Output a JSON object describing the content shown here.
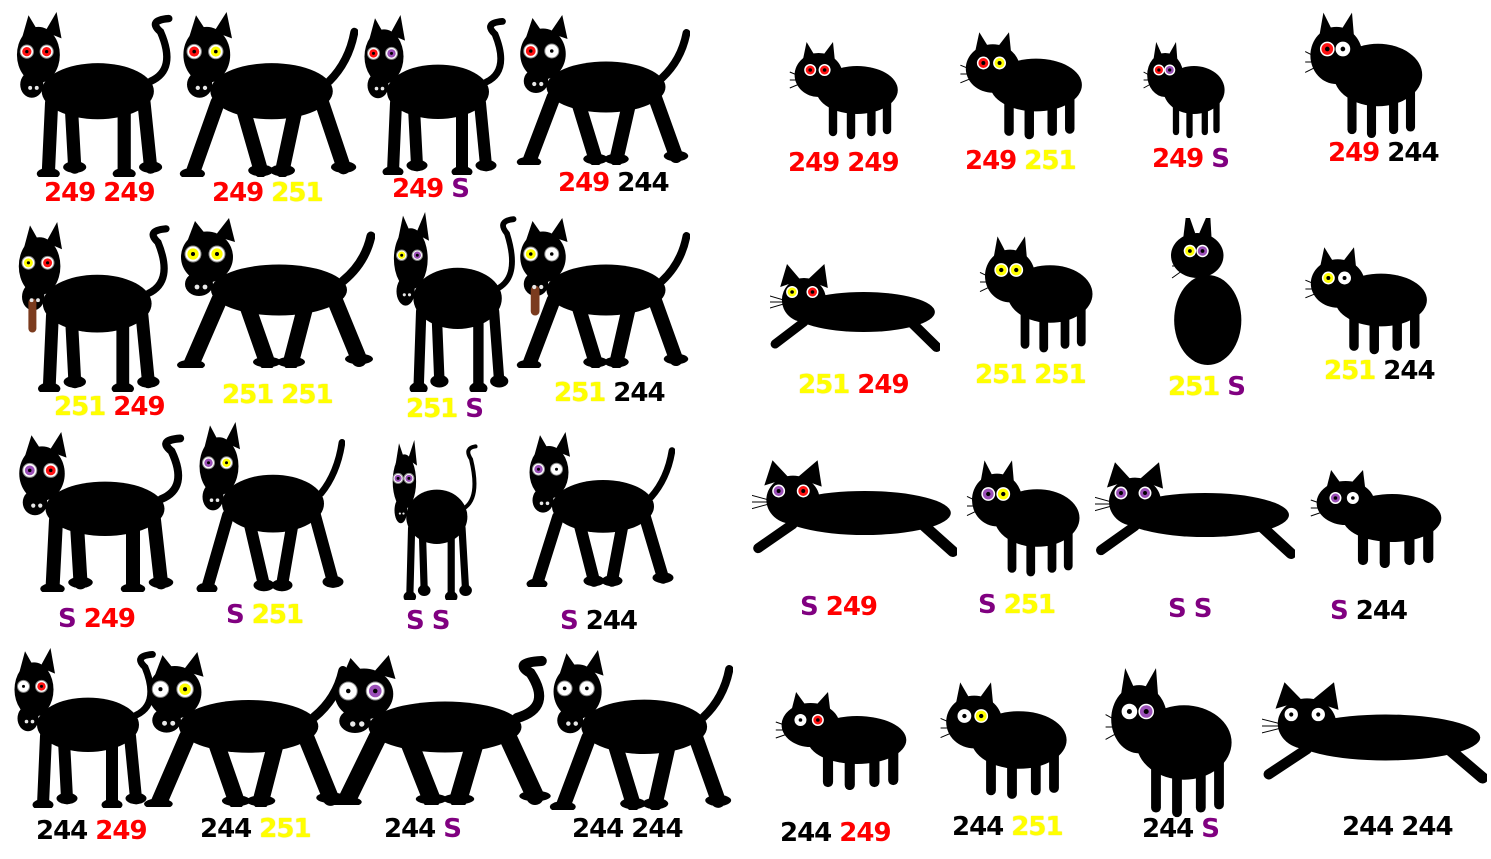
{
  "colors": {
    "red": "#ff0000",
    "yellow": "#ffff00",
    "purple": "#800080",
    "black": "#000000",
    "fur": "#000000"
  },
  "dogs": [
    {
      "eyes": [
        "red",
        "red"
      ],
      "label": [
        "249",
        "249"
      ]
    },
    {
      "eyes": [
        "red",
        "yellow"
      ],
      "label": [
        "249",
        "251"
      ]
    },
    {
      "eyes": [
        "red",
        "purple"
      ],
      "label": [
        "249",
        "S"
      ]
    },
    {
      "eyes": [
        "red",
        "white"
      ],
      "label": [
        "249",
        "244"
      ]
    },
    {
      "eyes": [
        "yellow",
        "red"
      ],
      "label": [
        "251",
        "249"
      ]
    },
    {
      "eyes": [
        "yellow",
        "yellow"
      ],
      "label": [
        "251",
        "251"
      ]
    },
    {
      "eyes": [
        "yellow",
        "purple"
      ],
      "label": [
        "251",
        "S"
      ]
    },
    {
      "eyes": [
        "yellow",
        "white"
      ],
      "label": [
        "251",
        "244"
      ]
    },
    {
      "eyes": [
        "purple",
        "red"
      ],
      "label": [
        "S",
        "249"
      ]
    },
    {
      "eyes": [
        "purple",
        "yellow"
      ],
      "label": [
        "S",
        "251"
      ]
    },
    {
      "eyes": [
        "purple",
        "purple"
      ],
      "label": [
        "S",
        "S"
      ]
    },
    {
      "eyes": [
        "purple",
        "white"
      ],
      "label": [
        "S",
        "244"
      ]
    },
    {
      "eyes": [
        "white",
        "red"
      ],
      "label": [
        "244",
        "249"
      ]
    },
    {
      "eyes": [
        "white",
        "yellow"
      ],
      "label": [
        "244",
        "251"
      ]
    },
    {
      "eyes": [
        "white",
        "purple"
      ],
      "label": [
        "244",
        "S"
      ]
    },
    {
      "eyes": [
        "white",
        "white"
      ],
      "label": [
        "244",
        "244"
      ]
    }
  ],
  "cats": [
    {
      "eyes": [
        "red",
        "red"
      ],
      "label": [
        "249",
        "249"
      ]
    },
    {
      "eyes": [
        "red",
        "yellow"
      ],
      "label": [
        "249",
        "251"
      ]
    },
    {
      "eyes": [
        "red",
        "purple"
      ],
      "label": [
        "249",
        "S"
      ]
    },
    {
      "eyes": [
        "red",
        "white"
      ],
      "label": [
        "249",
        "244"
      ]
    },
    {
      "eyes": [
        "yellow",
        "red"
      ],
      "label": [
        "251",
        "249"
      ]
    },
    {
      "eyes": [
        "yellow",
        "yellow"
      ],
      "label": [
        "251",
        "251"
      ]
    },
    {
      "eyes": [
        "yellow",
        "purple"
      ],
      "label": [
        "251",
        "S"
      ]
    },
    {
      "eyes": [
        "yellow",
        "white"
      ],
      "label": [
        "251",
        "244"
      ]
    },
    {
      "eyes": [
        "purple",
        "red"
      ],
      "label": [
        "S",
        "249"
      ]
    },
    {
      "eyes": [
        "purple",
        "yellow"
      ],
      "label": [
        "S",
        "251"
      ]
    },
    {
      "eyes": [
        "purple",
        "purple"
      ],
      "label": [
        "S",
        "S"
      ]
    },
    {
      "eyes": [
        "purple",
        "white"
      ],
      "label": [
        "S",
        "244"
      ]
    },
    {
      "eyes": [
        "white",
        "red"
      ],
      "label": [
        "244",
        "249"
      ]
    },
    {
      "eyes": [
        "white",
        "yellow"
      ],
      "label": [
        "244",
        "251"
      ]
    },
    {
      "eyes": [
        "white",
        "purple"
      ],
      "label": [
        "244",
        "S"
      ]
    },
    {
      "eyes": [
        "white",
        "white"
      ],
      "label": [
        "244",
        "244"
      ]
    }
  ]
}
